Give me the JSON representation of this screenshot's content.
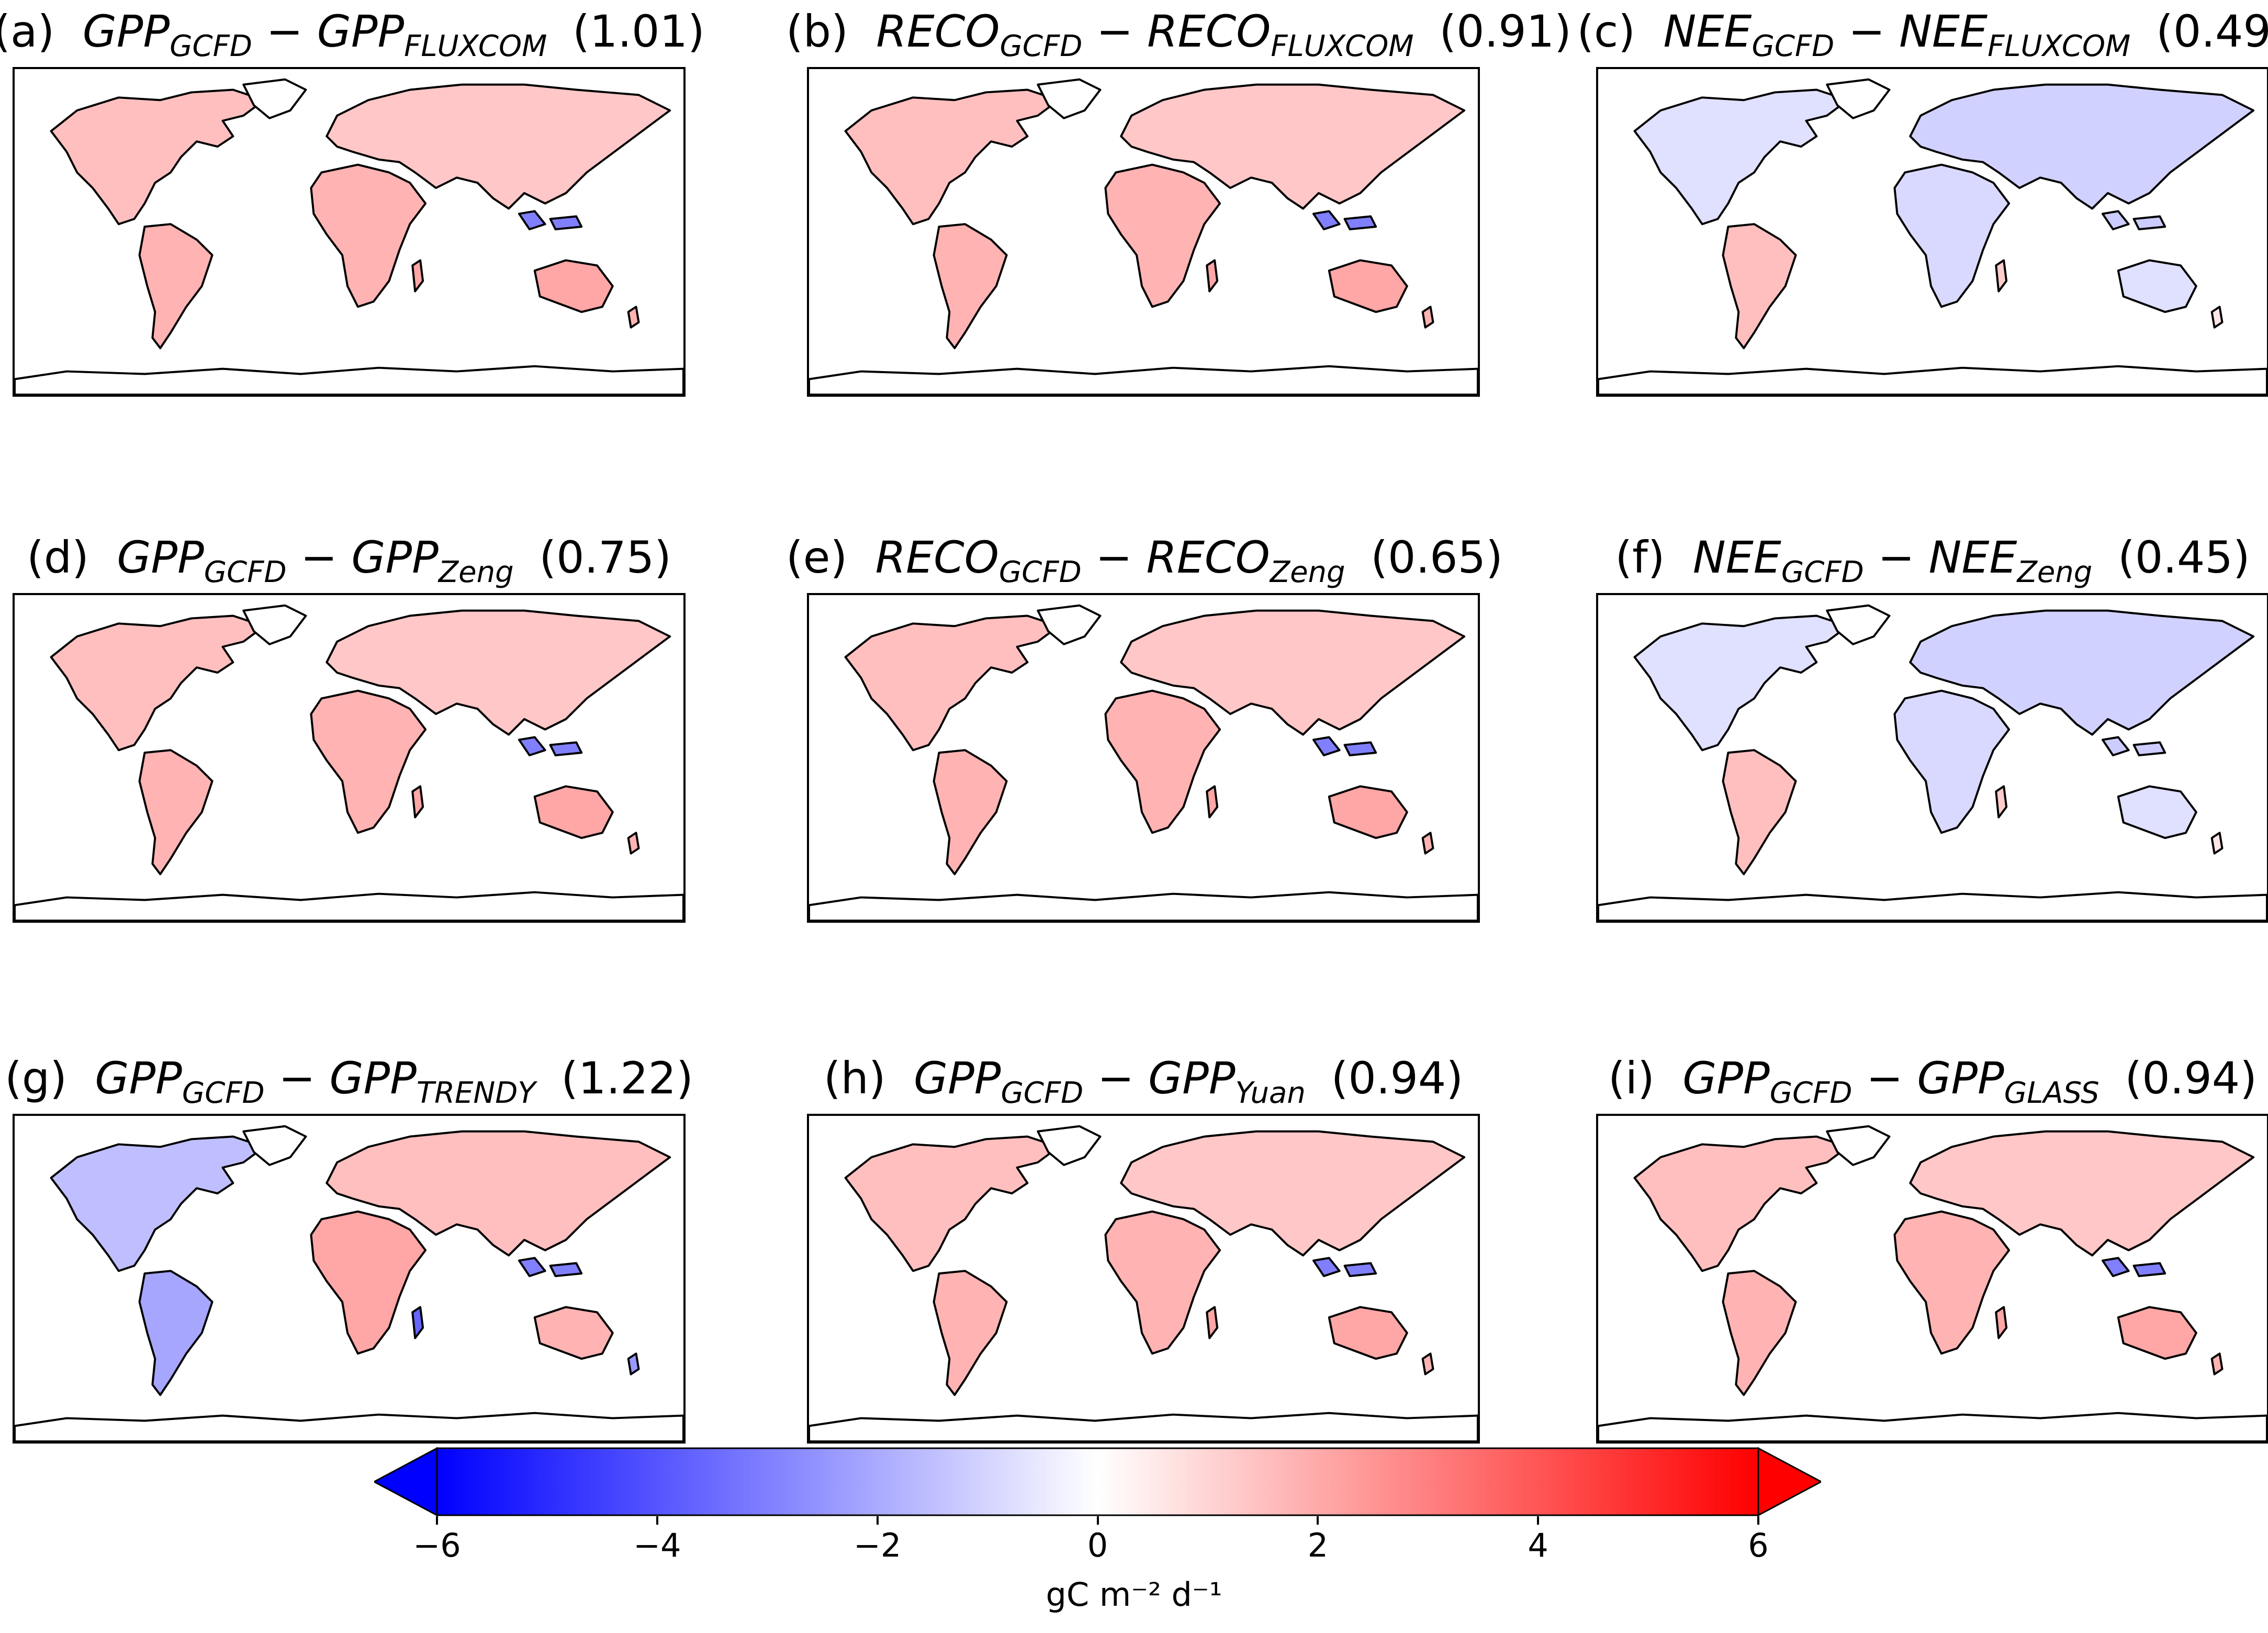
{
  "panels": [
    {
      "letter": "(a)",
      "var": "GPP",
      "ref": "FLUXCOM",
      "rmse": "(1.01)",
      "bias": "positive"
    },
    {
      "letter": "(b)",
      "var": "RECO",
      "ref": "FLUXCOM",
      "rmse": "(0.91)",
      "bias": "positive"
    },
    {
      "letter": "(c)",
      "var": "NEE",
      "ref": "FLUXCOM",
      "rmse": "(0.49)",
      "bias": "mixed"
    },
    {
      "letter": "(d)",
      "var": "GPP",
      "ref": "Zeng",
      "rmse": "(0.75)",
      "bias": "positive"
    },
    {
      "letter": "(e)",
      "var": "RECO",
      "ref": "Zeng",
      "rmse": "(0.65)",
      "bias": "positive"
    },
    {
      "letter": "(f)",
      "var": "NEE",
      "ref": "Zeng",
      "rmse": "(0.45)",
      "bias": "mixed"
    },
    {
      "letter": "(g)",
      "var": "GPP",
      "ref": "TRENDY",
      "rmse": "(1.22)",
      "bias": "strong"
    },
    {
      "letter": "(h)",
      "var": "GPP",
      "ref": "Yuan",
      "rmse": "(0.94)",
      "bias": "positive"
    },
    {
      "letter": "(i)",
      "var": "GPP",
      "ref": "GLASS",
      "rmse": "(0.94)",
      "bias": "positive"
    }
  ],
  "subscript_base": "GCFD",
  "minus_sign": "−",
  "colorbar": {
    "label": "gC m⁻² d⁻¹",
    "ticks": [
      "−6",
      "−4",
      "−2",
      "0",
      "2",
      "4",
      "6"
    ],
    "tick_values": [
      -6,
      -4,
      -2,
      0,
      2,
      4,
      6
    ],
    "min": -6,
    "max": 6,
    "colors": {
      "low": "#0000ff",
      "mid": "#ffffff",
      "high": "#ff0000"
    }
  }
}
